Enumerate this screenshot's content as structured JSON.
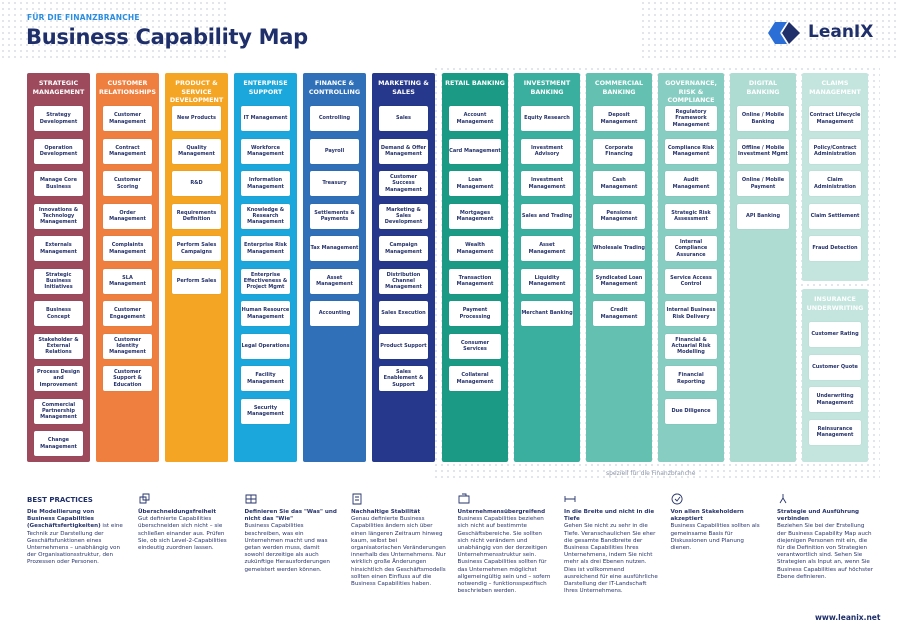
{
  "header": {
    "kicker": "FÜR DIE FINANZBRANCHE",
    "title": "Business Capability Map",
    "logo": "LeanIX"
  },
  "columns": [
    {
      "title": "STRATEGIC MANAGEMENT",
      "color": "#9d4a5c",
      "items": [
        "Strategy Development",
        "Operation Development",
        "Manage Core Business",
        "Innovations & Technology Management",
        "Externals Management",
        "Strategic Business Initiatives",
        "Business Concept",
        "Stakeholder & External Relations",
        "Process Design and Improvement",
        "Commercial Partnership Management",
        "Change Management"
      ]
    },
    {
      "title": "CUSTOMER RELATIONSHIPS",
      "color": "#ee7f3e",
      "items": [
        "Customer Management",
        "Contract Management",
        "Customer Scoring",
        "Order Management",
        "Complaints Management",
        "SLA Management",
        "Customer Engagement",
        "Customer Identity Management",
        "Customer Support & Education"
      ]
    },
    {
      "title": "PRODUCT & SERVICE DEVELOPMENT",
      "color": "#f5a524",
      "items": [
        "New Products",
        "Quality Management",
        "R&D",
        "Requirements Definition",
        "Perform Sales Campaigns",
        "Perform Sales"
      ]
    },
    {
      "title": "ENTERPRISE SUPPORT",
      "color": "#1ca7dc",
      "items": [
        "IT Management",
        "Workforce Management",
        "Information Management",
        "Knowledge & Research Management",
        "Enterprise Risk Management",
        "Enterprise Effectiveness & Project Mgmt",
        "Human Resource Management",
        "Legal Operations",
        "Facility Management",
        "Security Management"
      ]
    },
    {
      "title": "FINANCE & CONTROLLING",
      "color": "#2f70b9",
      "items": [
        "Controlling",
        "Payroll",
        "Treasury",
        "Settlements & Payments",
        "Tax Management",
        "Asset Management",
        "Accounting"
      ]
    },
    {
      "title": "MARKETING & SALES",
      "color": "#26388b",
      "items": [
        "Sales",
        "Demand & Offer Management",
        "Customer Success Management",
        "Marketing & Sales Development",
        "Campaign Management",
        "Distribution Channel Management",
        "Sales Execution",
        "Product Support",
        "Sales Enablement & Support"
      ]
    },
    {
      "title": "RETAIL BANKING",
      "color": "#1b9b86",
      "items": [
        "Account Management",
        "Card Management",
        "Loan Management",
        "Mortgages Management",
        "Wealth Management",
        "Transaction Management",
        "Payment Processing",
        "Consumer Services",
        "Collateral Management"
      ]
    },
    {
      "title": "INVESTMENT BANKING",
      "color": "#3aafa0",
      "items": [
        "Equity Research",
        "Investment Advisory",
        "Investment Management",
        "Sales and Trading",
        "Asset Management",
        "Liquidity Management",
        "Merchant Banking"
      ]
    },
    {
      "title": "COMMERCIAL BANKING",
      "color": "#64c1b2",
      "items": [
        "Deposit Management",
        "Corporate Financing",
        "Cash Management",
        "Pensions Management",
        "Wholesale Trading",
        "Syndicated Loan Management",
        "Credit Management"
      ]
    },
    {
      "title": "GOVERNANCE, RISK & COMPLIANCE",
      "color": "#87cdc1",
      "items": [
        "Regulatory Framework Management",
        "Compliance Risk Management",
        "Audit Management",
        "Strategic Risk Assessment",
        "Internal Compliance Assurance",
        "Service Access Control",
        "Internal Business Risk Delivery",
        "Financial & Actuarial Risk Modelling",
        "Financial Reporting",
        "Due Diligence"
      ]
    },
    {
      "title": "DIGITAL BANKING",
      "color": "#aedcd3",
      "items": [
        "Online / Mobile Banking",
        "Offline / Mobile Investment Mgmt",
        "Online / Mobile Payment",
        "API Banking"
      ]
    },
    {
      "title": "CLAIMS MANAGEMENT",
      "color": "#c3e5de",
      "items": [
        "Contract Lifecycle Management",
        "Policy/Contract Administration",
        "Claim Administration",
        "Claim Settlement",
        "Fraud Detection"
      ]
    },
    {
      "title": "INSURANCE UNDERWRITING",
      "color": "#c3e5de",
      "items": [
        "Customer Rating",
        "Customer Quote",
        "Underwriting Management",
        "Reinsurance Management"
      ]
    }
  ],
  "note": "speziell für die Finanzbranche",
  "best_practices": {
    "heading": "BEST PRACTICES",
    "intro_bold": "Die Modellierung von Business Capabilities (Geschäftsfertigkeiten)",
    "intro_text": " ist eine Technik zur Darstellung der Geschäftsfunktionen eines Unternehmens – unabhängig von der Organisationsstruktur, den Prozessen oder Personen.",
    "tips": [
      {
        "title": "Überschneidungsfreiheit",
        "text": "Gut definierte Capabilities überschneiden sich nicht – sie schließen einander aus. Prüfen Sie, ob sich Level-2-Capabilities eindeutig zuordnen lassen."
      },
      {
        "title": "Definieren Sie das \"Was\" und nicht das \"Wie\"",
        "text": "Business Capabilities beschreiben, was ein Unternehmen macht und was getan werden muss, damit sowohl derzeitige als auch zukünftige Herausforderungen gemeistert werden können."
      },
      {
        "title": "Nachhaltige Stabilität",
        "text": "Genau definierte Business Capabilities ändern sich über einen längeren Zeitraum hinweg kaum, selbst bei organisatorischen Veränderungen innerhalb des Unternehmens. Nur wirklich große Änderungen hinsichtlich des Geschäftsmodells sollten einen Einfluss auf die Business Capabilities haben."
      },
      {
        "title": "Unternehmensübergreifend",
        "text": "Business Capabilities beziehen sich nicht auf bestimmte Geschäftsbereiche. Sie sollten sich nicht verändern und unabhängig von der derzeitigen Unternehmensstruktur sein. Business Capabilities sollten für das Unternehmen möglichst allgemeingültig sein und – sofern notwendig – funktionsspezifisch beschrieben werden."
      },
      {
        "title": "In die Breite und nicht in die Tiefe",
        "text": "Gehen Sie nicht zu sehr in die Tiefe. Veranschaulichen Sie eher die gesamte Bandbreite der Business Capabilities Ihres Unternehmens, indem Sie nicht mehr als drei Ebenen nutzen. Dies ist vollkommend ausreichend für eine ausführliche Darstellung der IT-Landschaft Ihres Unternehmens."
      },
      {
        "title": "Von allen Stakeholdern akzeptiert",
        "text": "Business Capabilities sollten als gemeinsame Basis für Diskussionen und Planung dienen."
      },
      {
        "title": "Strategie und Ausführung verbinden",
        "text": "Beziehen Sie bei der Erstellung der Business Capability Map auch diejenigen Personen mit ein, die für die Definition von Strategien verantwortlich sind. Sehen Sie Strategien als Input an, wenn Sie Business Capabilities auf höchster Ebene definieren."
      }
    ]
  },
  "footer": {
    "url": "www.leanix.net"
  }
}
